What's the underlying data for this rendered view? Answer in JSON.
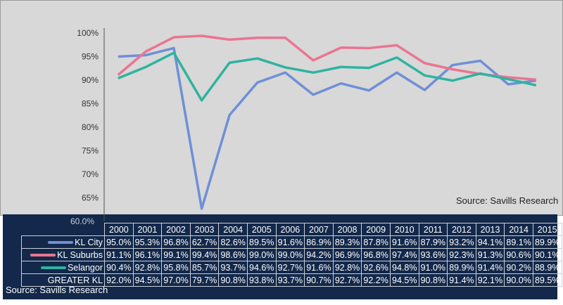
{
  "chart_data": {
    "type": "line",
    "categories": [
      "2000",
      "2001",
      "2002",
      "2003",
      "2004",
      "2005",
      "2006",
      "2007",
      "2008",
      "2009",
      "2010",
      "2011",
      "2012",
      "2013",
      "2014",
      "2015"
    ],
    "ylim": [
      60,
      100
    ],
    "yticks": [
      "100%",
      "95%",
      "90%",
      "85%",
      "80%",
      "75%",
      "70%",
      "65%",
      "60.0%"
    ],
    "annotation": "Source: Savills Research",
    "series": [
      {
        "name": "KL City",
        "color": "#6f8fd6",
        "plotted": true,
        "values": [
          95.0,
          95.3,
          96.8,
          62.7,
          82.6,
          89.5,
          91.6,
          86.9,
          89.3,
          87.8,
          91.6,
          87.9,
          93.2,
          94.1,
          89.1,
          89.9
        ]
      },
      {
        "name": "KL Suburbs",
        "color": "#ea7591",
        "plotted": true,
        "values": [
          91.1,
          96.1,
          99.1,
          99.4,
          98.6,
          99.0,
          99.0,
          94.2,
          96.9,
          96.8,
          97.4,
          93.6,
          92.3,
          91.3,
          90.6,
          90.1
        ]
      },
      {
        "name": "Selangor",
        "color": "#2fb3a0",
        "plotted": true,
        "values": [
          90.4,
          92.8,
          95.8,
          85.7,
          93.7,
          94.6,
          92.7,
          91.6,
          92.8,
          92.6,
          94.8,
          91.0,
          89.9,
          91.4,
          90.2,
          88.9
        ]
      },
      {
        "name": "GREATER KL",
        "color": "",
        "plotted": false,
        "values": [
          92.0,
          94.5,
          97.0,
          79.7,
          90.8,
          93.8,
          93.7,
          90.7,
          92.7,
          92.2,
          94.5,
          90.8,
          91.4,
          92.1,
          90.0,
          89.5
        ]
      }
    ]
  },
  "footer_source": "Source: Savills Research"
}
